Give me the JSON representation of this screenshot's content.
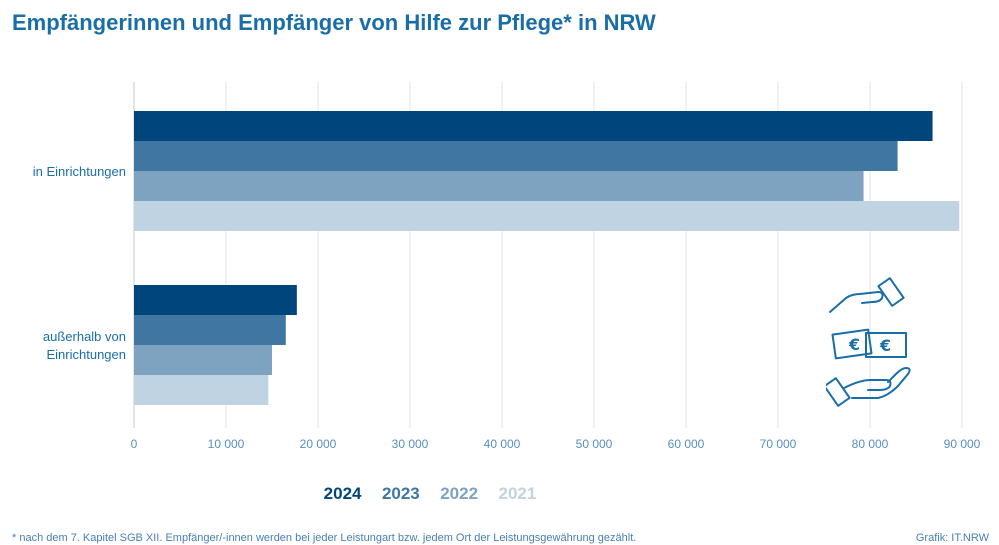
{
  "title": "Empfängerinnen und Empfänger von Hilfe zur Pflege* in NRW",
  "chart_data": {
    "type": "bar",
    "orientation": "horizontal",
    "categories": [
      [
        "in Einrichtungen"
      ],
      [
        "außerhalb von",
        "Einrichtungen"
      ]
    ],
    "series": [
      {
        "name": "2024",
        "color": "#00457c",
        "values": [
          86800,
          17700
        ]
      },
      {
        "name": "2023",
        "color": "#3f76a2",
        "values": [
          83000,
          16500
        ]
      },
      {
        "name": "2022",
        "color": "#7ea3c1",
        "values": [
          79300,
          15000
        ]
      },
      {
        "name": "2021",
        "color": "#c0d3e2",
        "values": [
          89700,
          14600
        ]
      }
    ],
    "xlim": [
      0,
      90000
    ],
    "xticks": [
      0,
      10000,
      20000,
      30000,
      40000,
      50000,
      60000,
      70000,
      80000,
      90000
    ],
    "xtick_labels": [
      "0",
      "10 000",
      "20 000",
      "30 000",
      "40 000",
      "50 000",
      "60 000",
      "70 000",
      "80 000",
      "90 000"
    ],
    "grid": true,
    "legend_position": "bottom"
  },
  "footnote": "* nach dem 7. Kapitel SGB XII. Empfänger/-innen werden bei jeder Leistungart bzw. jedem Ort der Leistungsgewährung gezählt.",
  "source": "Grafik: IT.NRW",
  "icon": "money-hands-icon"
}
